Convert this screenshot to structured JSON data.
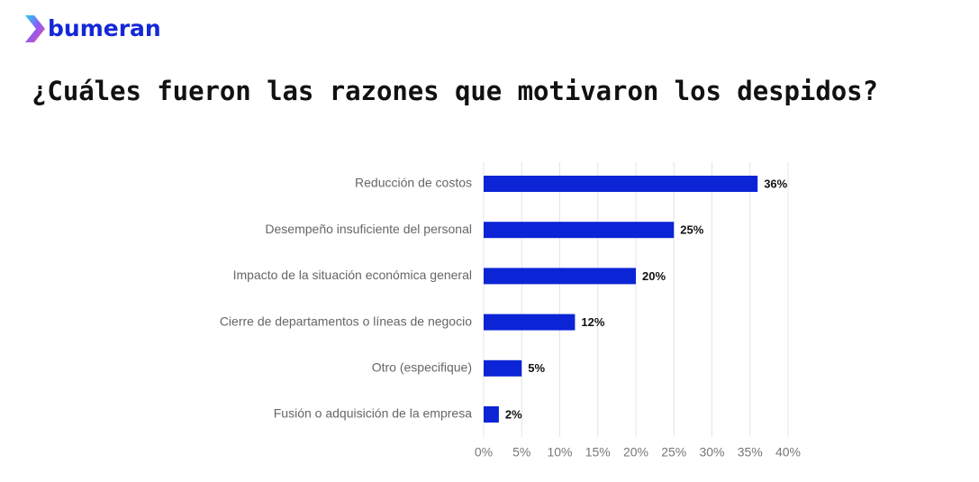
{
  "logo": "bumeran",
  "chart_data": {
    "type": "bar",
    "title": "¿Cuáles fueron las razones que motivaron los despidos?",
    "categories": [
      "Reducción de costos",
      "Desempeño insuficiente del personal",
      "Impacto de la situación económica general",
      "Cierre de departamentos o líneas de negocio",
      "Otro (especifique)",
      "Fusión o adquisición de la empresa"
    ],
    "values": [
      36,
      25,
      20,
      12,
      5,
      2
    ],
    "value_labels": [
      "36%",
      "25%",
      "20%",
      "12%",
      "5%",
      "2%"
    ],
    "color": "#0b24d6",
    "xlim": [
      0,
      40
    ],
    "xticks": [
      {
        "value": 0,
        "label": "0%"
      },
      {
        "value": 5,
        "label": "5%"
      },
      {
        "value": 10,
        "label": "10%"
      },
      {
        "value": 15,
        "label": "15%"
      },
      {
        "value": 20,
        "label": "20%"
      },
      {
        "value": 25,
        "label": "25%"
      },
      {
        "value": 30,
        "label": "30%"
      },
      {
        "value": 35,
        "label": "35%"
      },
      {
        "value": 40,
        "label": "40%"
      }
    ],
    "grid": true
  }
}
